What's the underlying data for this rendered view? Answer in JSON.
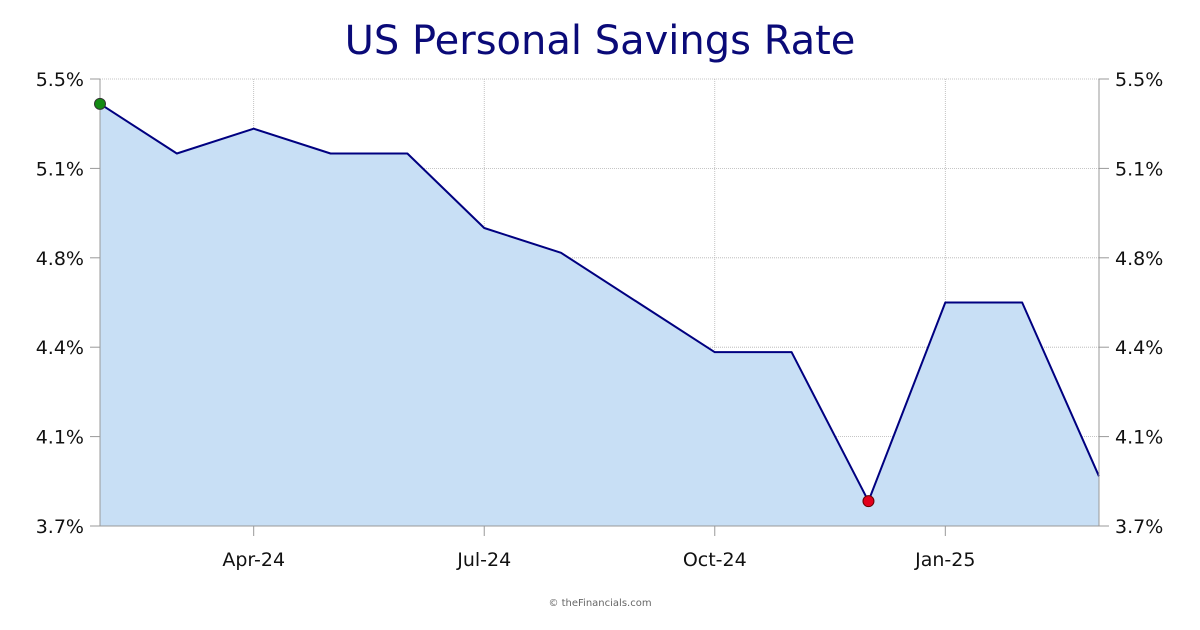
{
  "chart_data": {
    "type": "area",
    "title": "US Personal Savings Rate",
    "x": [
      "Feb-24",
      "Mar-24",
      "Apr-24",
      "May-24",
      "Jun-24",
      "Jul-24",
      "Aug-24",
      "Sep-24",
      "Oct-24",
      "Nov-24",
      "Dec-24",
      "Jan-25",
      "Feb-25",
      "Mar-25"
    ],
    "series": [
      {
        "values": [
          5.4,
          5.2,
          5.3,
          5.2,
          5.2,
          4.9,
          4.8,
          4.6,
          4.4,
          4.4,
          3.8,
          4.6,
          4.6,
          3.9
        ]
      }
    ],
    "x_tick_labels": [
      "Apr-24",
      "Jul-24",
      "Oct-24",
      "Jan-25"
    ],
    "y_tick_labels": [
      "5.5%",
      "5.1%",
      "4.8%",
      "4.4%",
      "4.1%",
      "3.7%"
    ],
    "ylim": [
      3.7,
      5.5
    ],
    "grid": true,
    "dual_y_axis": true,
    "markers": {
      "max": "Feb-24",
      "min": "Dec-24"
    },
    "colors": {
      "line": "#000080",
      "fill": "#c8dff5",
      "max_marker": "#138a13",
      "min_marker": "#e3001b",
      "title": "#0a0a78"
    },
    "credit": "© theFinancials.com"
  }
}
